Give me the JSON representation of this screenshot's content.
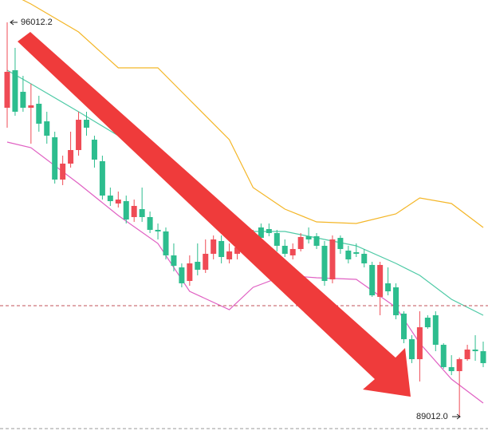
{
  "chart_data": {
    "type": "candlestick",
    "ylim": [
      88757,
      96409
    ],
    "up_color": "#2dbd8e",
    "down_color": "#ef4b55",
    "ohlc": [
      [
        95134,
        96012.2,
        94142,
        94496
      ],
      [
        94425,
        95559,
        94354,
        95162
      ],
      [
        94496,
        95063,
        94425,
        94779
      ],
      [
        94539,
        94921,
        93858,
        94496
      ],
      [
        94213,
        94709,
        94071,
        94567
      ],
      [
        94000,
        94425,
        93858,
        94255
      ],
      [
        93221,
        94071,
        93150,
        93972
      ],
      [
        93504,
        93646,
        93122,
        93221
      ],
      [
        93745,
        94071,
        93433,
        93504
      ],
      [
        94283,
        94425,
        93646,
        93745
      ],
      [
        94142,
        94425,
        94000,
        94283
      ],
      [
        93575,
        94000,
        93433,
        93929
      ],
      [
        92937,
        93646,
        92866,
        93547
      ],
      [
        92838,
        93079,
        92753,
        92937
      ],
      [
        92866,
        93008,
        92725,
        92796
      ],
      [
        92512,
        92937,
        92441,
        92838
      ],
      [
        92753,
        92866,
        92470,
        92555
      ],
      [
        92555,
        93079,
        92470,
        92696
      ],
      [
        92328,
        92654,
        92271,
        92555
      ],
      [
        92300,
        92441,
        92158,
        92328
      ],
      [
        91875,
        92371,
        91804,
        92300
      ],
      [
        91690,
        92087,
        91591,
        91875
      ],
      [
        91379,
        91733,
        91308,
        91662
      ],
      [
        91733,
        91875,
        91336,
        91421
      ],
      [
        91620,
        92087,
        91520,
        91761
      ],
      [
        91903,
        92158,
        91563,
        91620
      ],
      [
        92158,
        92229,
        91804,
        91903
      ],
      [
        91846,
        92229,
        91733,
        92130
      ],
      [
        91945,
        92087,
        91733,
        91804
      ],
      [
        92016,
        92087,
        91804,
        91903
      ],
      [
        92158,
        92300,
        91945,
        91988
      ],
      [
        92229,
        92328,
        92087,
        92158
      ],
      [
        92186,
        92441,
        92158,
        92371
      ],
      [
        92271,
        92441,
        92215,
        92342
      ],
      [
        92045,
        92328,
        91945,
        92271
      ],
      [
        91903,
        92158,
        91846,
        92045
      ],
      [
        91988,
        92087,
        91804,
        91875
      ],
      [
        92201,
        92271,
        91945,
        91988
      ],
      [
        92158,
        92371,
        92087,
        92215
      ],
      [
        92045,
        92271,
        91988,
        92215
      ],
      [
        91421,
        92130,
        91336,
        92045
      ],
      [
        92158,
        92229,
        91379,
        91449
      ],
      [
        91988,
        92229,
        91903,
        92186
      ],
      [
        91804,
        92045,
        91733,
        91960
      ],
      [
        91903,
        92087,
        91846,
        91931
      ],
      [
        91733,
        91988,
        91662,
        91903
      ],
      [
        91166,
        91761,
        91138,
        91705
      ],
      [
        91705,
        91761,
        90812,
        91138
      ],
      [
        91237,
        91662,
        91166,
        91379
      ],
      [
        90812,
        91379,
        90741,
        91308
      ],
      [
        90387,
        90883,
        90316,
        90841
      ],
      [
        90032,
        90458,
        89962,
        90387
      ],
      [
        90599,
        90883,
        89636,
        90032
      ],
      [
        90599,
        90812,
        90571,
        90769
      ],
      [
        90288,
        90883,
        90174,
        90812
      ],
      [
        89891,
        90316,
        89862,
        90288
      ],
      [
        89820,
        90103,
        89749,
        89891
      ],
      [
        90032,
        90061,
        89012.0,
        89820
      ],
      [
        90203,
        90288,
        90004,
        90032
      ],
      [
        90174,
        90458,
        90004,
        90203
      ],
      [
        89962,
        90344,
        89891,
        90174
      ]
    ],
    "bands": [
      {
        "color": "#f4b627",
        "x": [
          0,
          3,
          9,
          14,
          19,
          23,
          28,
          31,
          35,
          39,
          44,
          49,
          52,
          56,
          60
        ],
        "values": [
          96551,
          96338,
          95842,
          95205,
          95205,
          94638,
          93929,
          93079,
          92696,
          92470,
          92441,
          92612,
          92895,
          92796,
          92371
        ]
      },
      {
        "color": "#4fcaa6",
        "x": [
          0,
          3,
          9,
          14,
          19,
          23,
          28,
          31,
          35,
          39,
          44,
          49,
          52,
          56,
          60
        ],
        "values": [
          95162,
          94921,
          94425,
          94000,
          93362,
          92937,
          92441,
          92300,
          92300,
          92186,
          92045,
          91733,
          91520,
          91095,
          90812
        ]
      },
      {
        "color": "#e061c3",
        "x": [
          0,
          3,
          9,
          14,
          19,
          23,
          28,
          31,
          35,
          39,
          44,
          49,
          52,
          56,
          60
        ],
        "values": [
          93887,
          93788,
          93150,
          92583,
          92087,
          91237,
          90911,
          91308,
          91520,
          91478,
          91449,
          90954,
          90316,
          89678,
          89253
        ]
      }
    ],
    "price_line": {
      "value": 90981,
      "color": "#c0505a"
    },
    "max_label": {
      "value": 96012.2
    },
    "min_label": {
      "value": 89012,
      "label": "89012.0"
    }
  }
}
